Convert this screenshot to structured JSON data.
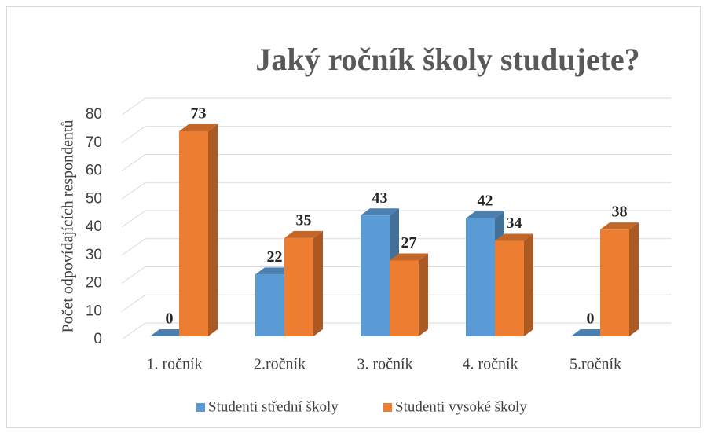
{
  "chart_data": {
    "type": "bar3d",
    "title": "Jaký ročník školy studujete?",
    "y_label": "Počet odpovídajících respondentů",
    "categories": [
      "1. ročník",
      "2.ročník",
      "3. ročník",
      "4. ročník",
      "5.ročník"
    ],
    "series": [
      {
        "name": "Studenti střední školy",
        "color": "#5b9bd5",
        "values": [
          0,
          22,
          43,
          42,
          0
        ]
      },
      {
        "name": "Studenti vysoké školy",
        "color": "#ed7d31",
        "values": [
          73,
          35,
          27,
          34,
          38
        ]
      }
    ],
    "ylim": [
      0,
      80
    ],
    "yticks": [
      0,
      10,
      20,
      30,
      40,
      50,
      60,
      70,
      80
    ],
    "grid": true,
    "legend": "bottom"
  }
}
